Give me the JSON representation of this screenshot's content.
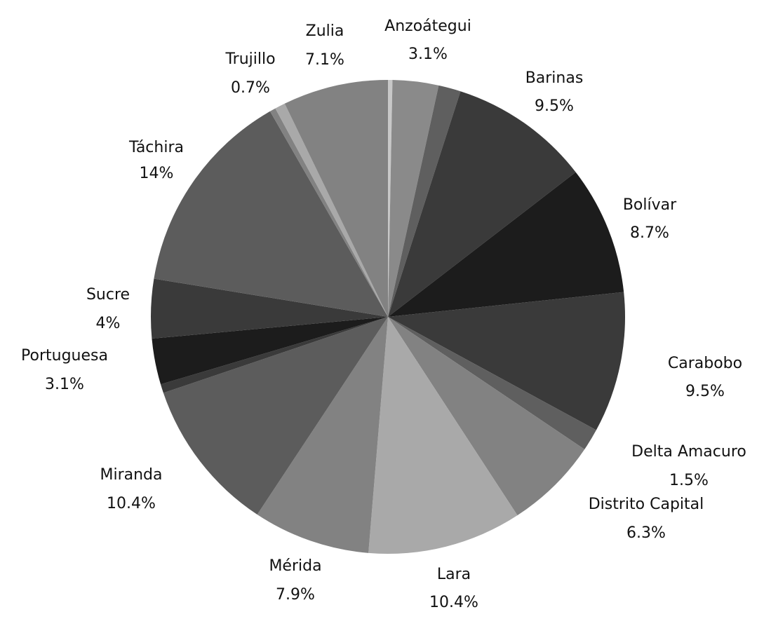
{
  "chart_data": {
    "type": "pie",
    "title": "",
    "start_angle_deg": 90,
    "direction": "clockwise",
    "slices": [
      {
        "name": "",
        "label_name": "",
        "label_value": "",
        "value": 0.3,
        "color": "#c8c8c8"
      },
      {
        "name": "Anzoátegui",
        "label_name": "Anzoátegui",
        "label_value": "3.1%",
        "value": 3.1,
        "color": "#8a8a8a"
      },
      {
        "name": "",
        "label_name": "",
        "label_value": "",
        "value": 1.5,
        "color": "#5f5f5f"
      },
      {
        "name": "Barinas",
        "label_name": "Barinas",
        "label_value": "9.5%",
        "value": 9.5,
        "color": "#3a3a3a"
      },
      {
        "name": "Bolívar",
        "label_name": "Bolívar",
        "label_value": "8.7%",
        "value": 8.7,
        "color": "#1c1c1c"
      },
      {
        "name": "Carabobo",
        "label_name": "Carabobo",
        "label_value": "9.5%",
        "value": 9.5,
        "color": "#3a3a3a"
      },
      {
        "name": "Delta Amacuro",
        "label_name": "Delta Amacuro",
        "label_value": "1.5%",
        "value": 1.5,
        "color": "#5f5f5f"
      },
      {
        "name": "Distrito Capital",
        "label_name": "Distrito Capital",
        "label_value": "6.3%",
        "value": 6.3,
        "color": "#828282"
      },
      {
        "name": "Lara",
        "label_name": "Lara",
        "label_value": "10.4%",
        "value": 10.4,
        "color": "#a9a9a9"
      },
      {
        "name": "Mérida",
        "label_name": "Mérida",
        "label_value": "7.9%",
        "value": 7.9,
        "color": "#828282"
      },
      {
        "name": "Miranda",
        "label_name": "Miranda",
        "label_value": "10.4%",
        "value": 10.4,
        "color": "#5c5c5c"
      },
      {
        "name": "",
        "label_name": "",
        "label_value": "",
        "value": 0.6,
        "color": "#3a3a3a"
      },
      {
        "name": "Portuguesa",
        "label_name": "Portuguesa",
        "label_value": "3.1%",
        "value": 3.1,
        "color": "#1c1c1c"
      },
      {
        "name": "Sucre",
        "label_name": "Sucre",
        "label_value": "4%",
        "value": 4.0,
        "color": "#3a3a3a"
      },
      {
        "name": "Táchira",
        "label_name": "Táchira",
        "label_value": "14%",
        "value": 14.0,
        "color": "#5c5c5c"
      },
      {
        "name": "",
        "label_name": "",
        "label_value": "",
        "value": 0.4,
        "color": "#828282"
      },
      {
        "name": "Trujillo",
        "label_name": "Trujillo",
        "label_value": "0.7%",
        "value": 0.7,
        "color": "#a9a9a9"
      },
      {
        "name": "Zulia",
        "label_name": "Zulia",
        "label_value": "7.1%",
        "value": 7.1,
        "color": "#828282"
      }
    ]
  }
}
